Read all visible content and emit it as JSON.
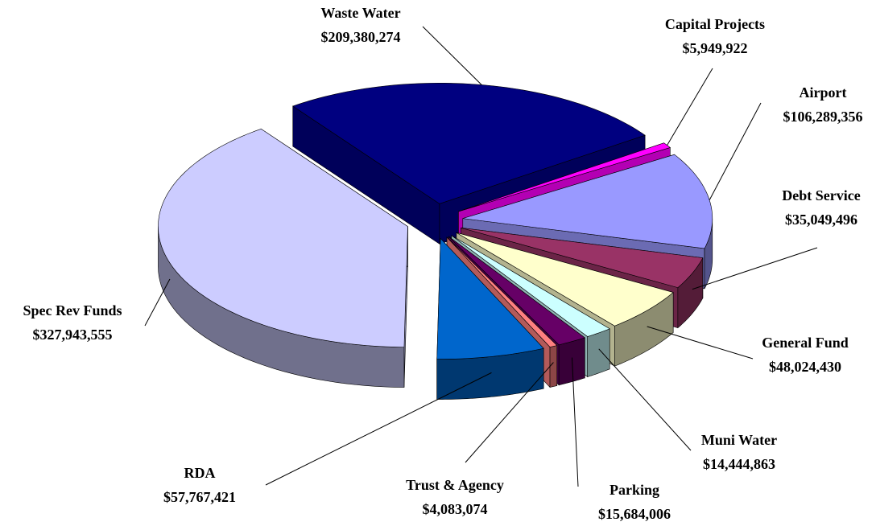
{
  "chart_data": {
    "type": "pie",
    "categories": [
      "Waste Water",
      "Capital Projects",
      "Airport",
      "Debt Service",
      "General Fund",
      "Muni Water",
      "Parking",
      "Trust & Agency",
      "RDA",
      "Spec Rev Funds"
    ],
    "values": [
      209380274,
      5949922,
      106289356,
      35049496,
      48024430,
      14444863,
      15684006,
      4083074,
      57767421,
      327943555
    ],
    "value_labels": [
      "$209,380,274",
      "$5,949,922",
      "$106,289,356",
      "$35,049,496",
      "$48,024,430",
      "$14,444,863",
      "$15,684,006",
      "$4,083,074",
      "$57,767,421",
      "$327,943,555"
    ],
    "colors": [
      "#000080",
      "#ff00ff",
      "#9999ff",
      "#993366",
      "#ffffcc",
      "#ccffff",
      "#660066",
      "#ff8080",
      "#0066cc",
      "#ccccff"
    ]
  }
}
